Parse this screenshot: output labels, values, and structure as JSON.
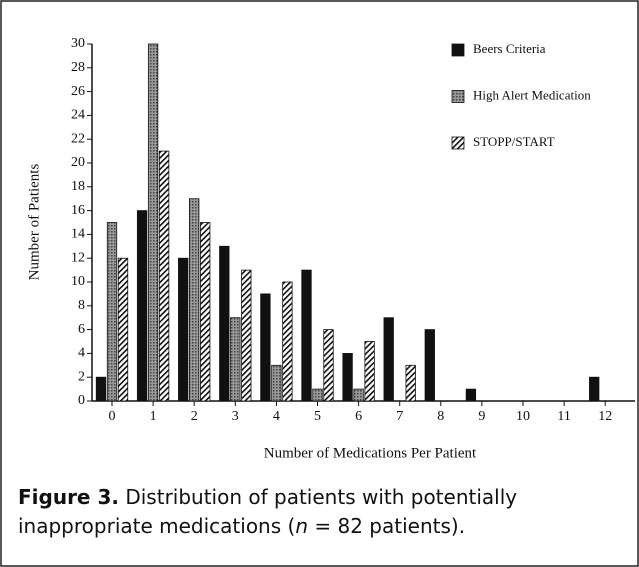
{
  "chart_data": {
    "type": "bar",
    "x_label": "Number of Medications Per Patient",
    "y_label": "Number of Patients",
    "categories": [
      "0",
      "1",
      "2",
      "3",
      "4",
      "5",
      "6",
      "7",
      "8",
      "9",
      "10",
      "11",
      "12"
    ],
    "series": [
      {
        "name": "Beers Criteria",
        "color": "#111111",
        "pattern": "solid",
        "values": [
          2,
          16,
          12,
          13,
          9,
          11,
          4,
          7,
          6,
          1,
          0,
          0,
          2
        ]
      },
      {
        "name": "High Alert Medication",
        "color": "#888888",
        "pattern": "dots",
        "values": [
          15,
          30,
          17,
          7,
          3,
          1,
          1,
          0,
          0,
          0,
          0,
          0,
          0
        ]
      },
      {
        "name": "STOPP/START",
        "color": "#ffffff",
        "pattern": "hatch",
        "values": [
          12,
          21,
          15,
          11,
          10,
          6,
          5,
          3,
          0,
          0,
          0,
          0,
          0
        ]
      }
    ],
    "ylim": [
      0,
      30
    ],
    "yticks": [
      0,
      2,
      4,
      6,
      8,
      10,
      12,
      14,
      16,
      18,
      20,
      22,
      24,
      26,
      28,
      30
    ],
    "legend": "top-right",
    "caption": {
      "label": "Figure 3.",
      "text": "Distribution of patients with potentially inappropriate medications (",
      "n": "n",
      "rest": " = 82 patients)."
    }
  }
}
